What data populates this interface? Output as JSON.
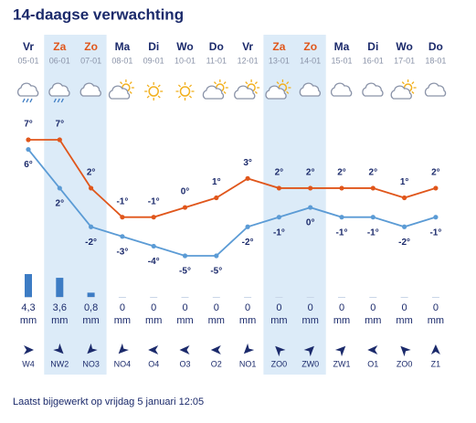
{
  "chart_data": {
    "type": "line",
    "title": "14-daagse verwachting",
    "categories": [
      "Vr",
      "Za",
      "Zo",
      "Ma",
      "Di",
      "Wo",
      "Do",
      "Vr",
      "Za",
      "Zo",
      "Ma",
      "Di",
      "Wo",
      "Do"
    ],
    "dates": [
      "05-01",
      "06-01",
      "07-01",
      "08-01",
      "09-01",
      "10-01",
      "11-01",
      "12-01",
      "13-01",
      "14-01",
      "15-01",
      "16-01",
      "17-01",
      "18-01"
    ],
    "series": [
      {
        "color": "#e0561b",
        "values": [
          7,
          7,
          2,
          -1,
          -1,
          0,
          1,
          3,
          2,
          2,
          2,
          2,
          1,
          2
        ],
        "value_labels": [
          "7°",
          "7°",
          "2°",
          "-1°",
          "-1°",
          "0°",
          "1°",
          "3°",
          "2°",
          "2°",
          "2°",
          "2°",
          "1°",
          "2°"
        ]
      },
      {
        "color": "#5b9bd5",
        "values": [
          6,
          2,
          -2,
          -3,
          -4,
          -5,
          -5,
          -2,
          -1,
          0,
          -1,
          -1,
          -2,
          -1
        ],
        "value_labels": [
          "6°",
          "2°",
          "-2°",
          "-3°",
          "-4°",
          "-5°",
          "-5°",
          "-2°",
          "-1°",
          "0°",
          "-1°",
          "-1°",
          "-2°",
          "-1°"
        ]
      }
    ],
    "precipitation": {
      "color": "#3d7cc4",
      "unit": "mm",
      "values": [
        4.3,
        3.6,
        0.8,
        0,
        0,
        0,
        0,
        0,
        0,
        0,
        0,
        0,
        0,
        0
      ],
      "value_labels": [
        "4,3",
        "3,6",
        "0,8",
        "0",
        "0",
        "0",
        "0",
        "0",
        "0",
        "0",
        "0",
        "0",
        "0",
        "0"
      ]
    },
    "wind": [
      "W4",
      "NW2",
      "NO3",
      "NO4",
      "O4",
      "O3",
      "O2",
      "NO1",
      "ZO0",
      "ZW0",
      "ZW1",
      "O1",
      "ZO0",
      "Z1"
    ],
    "footer": "Laatst bijgewerkt op vrijdag 5 januari 12:05"
  }
}
